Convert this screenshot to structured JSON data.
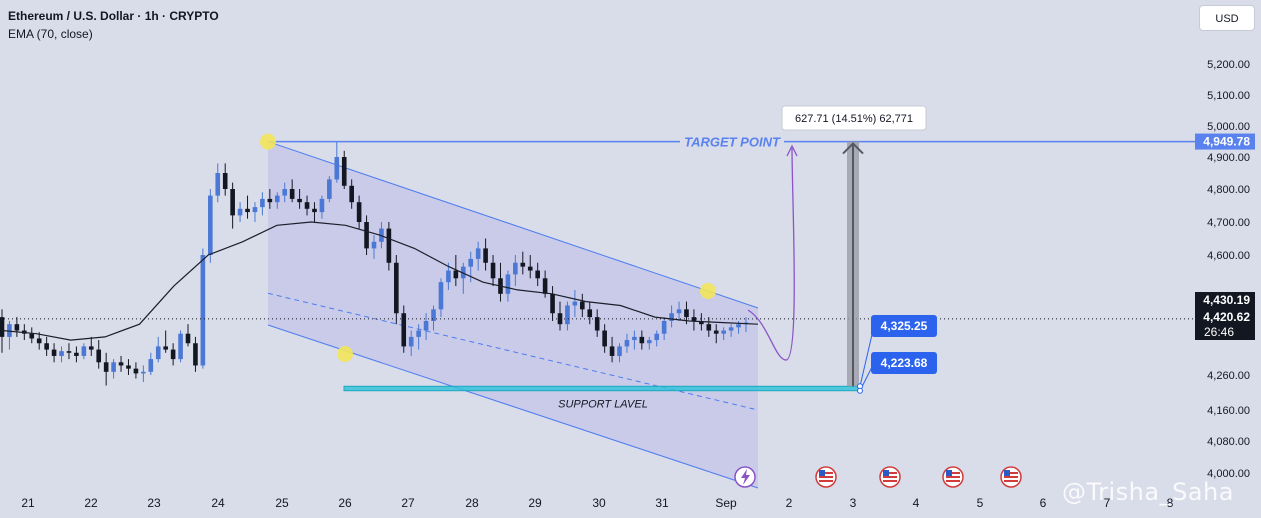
{
  "header": {
    "symbol": "Ethereum / U.S. Dollar · 1h · CRYPTO",
    "indicator": "EMA (70, close)"
  },
  "currency_button": "USD",
  "watermark": "@Trisha_Saha",
  "colors": {
    "background": "#d9dce9",
    "candle_up": "#4a78d4",
    "candle_down": "#131722",
    "ema": "#1c1f2a",
    "channel_fill": "#c3c6e8",
    "channel_line": "#4e7cf0",
    "support_fill": "#35c3da",
    "target_line": "#5a82ee",
    "projection": "#8a54c8",
    "badge": "#2c63ee",
    "highlight": "#f2e65a"
  },
  "chart_data": {
    "type": "candlestick",
    "timeframe": "1h",
    "x_ticks": [
      "21",
      "22",
      "23",
      "24",
      "25",
      "26",
      "27",
      "28",
      "29",
      "30",
      "31",
      "Sep",
      "2",
      "3",
      "4",
      "5",
      "6",
      "7",
      "8"
    ],
    "y_ticks": [
      "5,200.00",
      "5,100.00",
      "5,000.00",
      "4,900.00",
      "4,800.00",
      "4,700.00",
      "4,600.00",
      "4,260.00",
      "4,160.00",
      "4,080.00",
      "4,000.00"
    ],
    "price_labels": {
      "target": "4,949.78",
      "last": "4,430.19",
      "ema": "4,420.62",
      "countdown": "26:46"
    },
    "annotations": {
      "target_point": "TARGET POINT",
      "support_label": "SUPPORT LAVEL",
      "measure": "627.71 (14.51%) 62,771",
      "upper_badge": "4,325.25",
      "lower_badge": "4,223.68"
    },
    "channel": {
      "upper": [
        [
          "24 18:00",
          4949.78
        ],
        [
          "Sep 01 18:00",
          4430
        ]
      ],
      "lower": [
        [
          "24 18:00",
          4420
        ],
        [
          "Sep 01 18:00",
          3990
        ]
      ]
    },
    "support_zone": {
      "from": "26 00:00",
      "to": "Sep 03 06:00",
      "top": 4325.25,
      "bottom": 4223.68
    },
    "target_level": 4949.78,
    "highlight_points": [
      [
        "24 20:00",
        4949.78
      ],
      [
        "26 00:00",
        4330
      ],
      [
        "Aug 31 20:00",
        4460
      ]
    ],
    "series": [
      {
        "name": "ETHUSD",
        "values": [
          [
            4440,
            4460,
            4330,
            4380
          ],
          [
            4380,
            4430,
            4340,
            4420
          ],
          [
            4420,
            4440,
            4380,
            4400
          ],
          [
            4400,
            4420,
            4370,
            4390
          ],
          [
            4390,
            4410,
            4360,
            4375
          ],
          [
            4375,
            4395,
            4340,
            4360
          ],
          [
            4360,
            4380,
            4320,
            4340
          ],
          [
            4340,
            4360,
            4300,
            4320
          ],
          [
            4320,
            4350,
            4300,
            4335
          ],
          [
            4335,
            4360,
            4310,
            4330
          ],
          [
            4330,
            4350,
            4300,
            4320
          ],
          [
            4320,
            4360,
            4310,
            4350
          ],
          [
            4350,
            4380,
            4320,
            4340
          ],
          [
            4340,
            4370,
            4280,
            4300
          ],
          [
            4300,
            4330,
            4230,
            4270
          ],
          [
            4270,
            4310,
            4250,
            4300
          ],
          [
            4300,
            4320,
            4270,
            4290
          ],
          [
            4290,
            4310,
            4260,
            4280
          ],
          [
            4280,
            4300,
            4250,
            4265
          ],
          [
            4265,
            4290,
            4240,
            4270
          ],
          [
            4270,
            4330,
            4260,
            4310
          ],
          [
            4310,
            4380,
            4300,
            4350
          ],
          [
            4350,
            4400,
            4330,
            4340
          ],
          [
            4340,
            4360,
            4290,
            4310
          ],
          [
            4310,
            4400,
            4300,
            4390
          ],
          [
            4390,
            4420,
            4350,
            4360
          ],
          [
            4360,
            4380,
            4270,
            4290
          ],
          [
            4290,
            4620,
            4280,
            4600
          ],
          [
            4600,
            4800,
            4580,
            4780
          ],
          [
            4780,
            4880,
            4760,
            4850
          ],
          [
            4850,
            4880,
            4780,
            4800
          ],
          [
            4800,
            4820,
            4680,
            4720
          ],
          [
            4720,
            4760,
            4700,
            4740
          ],
          [
            4740,
            4780,
            4710,
            4730
          ],
          [
            4730,
            4760,
            4700,
            4745
          ],
          [
            4745,
            4790,
            4720,
            4770
          ],
          [
            4770,
            4800,
            4740,
            4760
          ],
          [
            4760,
            4790,
            4740,
            4780
          ],
          [
            4780,
            4820,
            4760,
            4800
          ],
          [
            4800,
            4830,
            4760,
            4770
          ],
          [
            4770,
            4800,
            4740,
            4760
          ],
          [
            4760,
            4780,
            4720,
            4740
          ],
          [
            4740,
            4760,
            4700,
            4730
          ],
          [
            4730,
            4780,
            4710,
            4770
          ],
          [
            4770,
            4840,
            4760,
            4830
          ],
          [
            4830,
            4950,
            4820,
            4900
          ],
          [
            4900,
            4920,
            4800,
            4810
          ],
          [
            4810,
            4830,
            4740,
            4760
          ],
          [
            4760,
            4780,
            4680,
            4700
          ],
          [
            4700,
            4720,
            4600,
            4620
          ],
          [
            4620,
            4660,
            4590,
            4640
          ],
          [
            4640,
            4700,
            4620,
            4680
          ],
          [
            4680,
            4700,
            4560,
            4580
          ],
          [
            4580,
            4600,
            4420,
            4450
          ],
          [
            4450,
            4470,
            4330,
            4350
          ],
          [
            4350,
            4400,
            4320,
            4380
          ],
          [
            4380,
            4420,
            4340,
            4400
          ],
          [
            4400,
            4450,
            4370,
            4430
          ],
          [
            4430,
            4470,
            4400,
            4460
          ],
          [
            4460,
            4540,
            4440,
            4530
          ],
          [
            4530,
            4580,
            4510,
            4560
          ],
          [
            4560,
            4600,
            4520,
            4540
          ],
          [
            4540,
            4580,
            4500,
            4570
          ],
          [
            4570,
            4610,
            4530,
            4590
          ],
          [
            4590,
            4640,
            4560,
            4620
          ],
          [
            4620,
            4650,
            4560,
            4580
          ],
          [
            4580,
            4600,
            4520,
            4540
          ],
          [
            4540,
            4580,
            4480,
            4500
          ],
          [
            4500,
            4560,
            4480,
            4550
          ],
          [
            4550,
            4600,
            4520,
            4580
          ],
          [
            4580,
            4610,
            4550,
            4570
          ],
          [
            4570,
            4600,
            4540,
            4560
          ],
          [
            4560,
            4580,
            4520,
            4540
          ],
          [
            4540,
            4560,
            4490,
            4500
          ],
          [
            4500,
            4520,
            4430,
            4450
          ],
          [
            4450,
            4480,
            4400,
            4420
          ],
          [
            4420,
            4480,
            4400,
            4470
          ],
          [
            4470,
            4510,
            4440,
            4480
          ],
          [
            4480,
            4500,
            4440,
            4460
          ],
          [
            4460,
            4480,
            4420,
            4440
          ],
          [
            4440,
            4460,
            4380,
            4400
          ],
          [
            4400,
            4420,
            4330,
            4350
          ],
          [
            4350,
            4380,
            4300,
            4320
          ],
          [
            4320,
            4360,
            4300,
            4350
          ],
          [
            4350,
            4390,
            4330,
            4370
          ],
          [
            4370,
            4400,
            4340,
            4380
          ],
          [
            4380,
            4400,
            4340,
            4360
          ],
          [
            4360,
            4380,
            4340,
            4370
          ],
          [
            4370,
            4400,
            4350,
            4390
          ],
          [
            4390,
            4440,
            4370,
            4430
          ],
          [
            4430,
            4470,
            4410,
            4450
          ],
          [
            4450,
            4480,
            4430,
            4460
          ],
          [
            4460,
            4480,
            4420,
            4440
          ],
          [
            4440,
            4460,
            4400,
            4430
          ],
          [
            4430,
            4450,
            4400,
            4420
          ],
          [
            4420,
            4440,
            4380,
            4400
          ],
          [
            4400,
            4420,
            4360,
            4390
          ],
          [
            4390,
            4410,
            4370,
            4400
          ],
          [
            4400,
            4420,
            4380,
            4410
          ],
          [
            4410,
            4430,
            4390,
            4420
          ],
          [
            4420,
            4440,
            4395,
            4425
          ]
        ]
      },
      {
        "name": "EMA (70, close)",
        "values": [
          4400,
          4390,
          4370,
          4380,
          4420,
          4520,
          4600,
          4640,
          4690,
          4700,
          4690,
          4660,
          4620,
          4570,
          4530,
          4510,
          4500,
          4480,
          4470,
          4440,
          4430,
          4425,
          4420
        ]
      }
    ]
  }
}
